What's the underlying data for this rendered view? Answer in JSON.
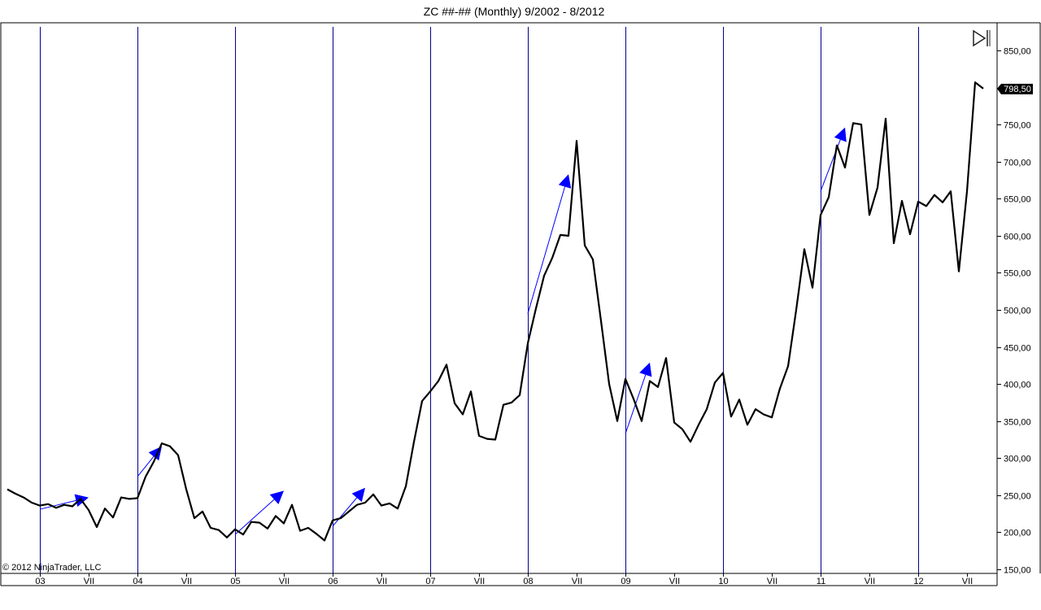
{
  "chart_title": "ZC ##-## (Monthly)  9/2002 - 8/2012",
  "copyright": "© 2012 NinjaTrader, LLC",
  "last_price_label": "798,50",
  "nav_icon": "go-to-end-icon",
  "colors": {
    "price_line": "#000000",
    "session_break": "#00008b",
    "signal_arrow": "#0000ff",
    "price_badge_bg": "#000000",
    "price_badge_text": "#ffffff"
  },
  "chart_data": {
    "type": "line",
    "title": "ZC ##-## (Monthly)  9/2002 - 8/2012",
    "x_start": "2002-09",
    "x_step": "1 month",
    "ylim": [
      150,
      850
    ],
    "y_ticks": [
      150,
      200,
      250,
      300,
      350,
      400,
      450,
      500,
      550,
      600,
      650,
      700,
      750,
      800,
      850
    ],
    "y_tick_labels": [
      "150,00",
      "200,00",
      "250,00",
      "300,00",
      "350,00",
      "400,00",
      "450,00",
      "500,00",
      "550,00",
      "600,00",
      "650,00",
      "700,00",
      "750,00",
      "800,00",
      "850,00"
    ],
    "x_ticks": [
      {
        "date": "2003-01",
        "label": "03"
      },
      {
        "date": "2003-07",
        "label": "VII"
      },
      {
        "date": "2004-01",
        "label": "04"
      },
      {
        "date": "2004-07",
        "label": "VII"
      },
      {
        "date": "2005-01",
        "label": "05"
      },
      {
        "date": "2005-07",
        "label": "VII"
      },
      {
        "date": "2006-01",
        "label": "06"
      },
      {
        "date": "2006-07",
        "label": "VII"
      },
      {
        "date": "2007-01",
        "label": "07"
      },
      {
        "date": "2007-07",
        "label": "VII"
      },
      {
        "date": "2008-01",
        "label": "08"
      },
      {
        "date": "2008-07",
        "label": "VII"
      },
      {
        "date": "2009-01",
        "label": "09"
      },
      {
        "date": "2009-07",
        "label": "VII"
      },
      {
        "date": "2010-01",
        "label": "10"
      },
      {
        "date": "2010-07",
        "label": "VII"
      },
      {
        "date": "2011-01",
        "label": "11"
      },
      {
        "date": "2011-07",
        "label": "VII"
      },
      {
        "date": "2012-01",
        "label": "12"
      },
      {
        "date": "2012-07",
        "label": "VII"
      }
    ],
    "year_breaks": [
      "2003-01",
      "2004-01",
      "2005-01",
      "2006-01",
      "2007-01",
      "2008-01",
      "2009-01",
      "2010-01",
      "2011-01",
      "2012-01"
    ],
    "series": [
      {
        "values": [
          258,
          252,
          247,
          240,
          236,
          238,
          233,
          237,
          235,
          245,
          230,
          207,
          232,
          220,
          247,
          245,
          246,
          275,
          295,
          320,
          316,
          304,
          258,
          219,
          228,
          206,
          203,
          193,
          204,
          197,
          214,
          213,
          205,
          222,
          212,
          237,
          202,
          206,
          198,
          189,
          216,
          219,
          228,
          237,
          240,
          251,
          236,
          239,
          232,
          262,
          322,
          377,
          390,
          404,
          426,
          374,
          359,
          390,
          330,
          326,
          325,
          372,
          375,
          385,
          455,
          502,
          546,
          570,
          601,
          600,
          728,
          587,
          568,
          485,
          400,
          350,
          407,
          380,
          350,
          404,
          396,
          435,
          348,
          339,
          322,
          345,
          366,
          402,
          415,
          356,
          379,
          345,
          366,
          359,
          355,
          394,
          424,
          500,
          582,
          530,
          628,
          652,
          722,
          692,
          752,
          750,
          628,
          665,
          758,
          590,
          647,
          602,
          646,
          640,
          655,
          645,
          660,
          552,
          660,
          807,
          798.5
        ]
      }
    ],
    "trend_arrows": [
      {
        "from": [
          "2003-01",
          231
        ],
        "to": [
          "2003-07",
          247
        ]
      },
      {
        "from": [
          "2004-01",
          275
        ],
        "to": [
          "2004-04",
          316
        ]
      },
      {
        "from": [
          "2005-01",
          197
        ],
        "to": [
          "2005-07",
          256
        ]
      },
      {
        "from": [
          "2006-01",
          208
        ],
        "to": [
          "2006-05",
          260
        ]
      },
      {
        "from": [
          "2008-01",
          495
        ],
        "to": [
          "2008-06",
          683
        ]
      },
      {
        "from": [
          "2009-01",
          333
        ],
        "to": [
          "2009-04",
          429
        ]
      },
      {
        "from": [
          "2011-01",
          660
        ],
        "to": [
          "2011-04",
          746
        ]
      }
    ]
  }
}
